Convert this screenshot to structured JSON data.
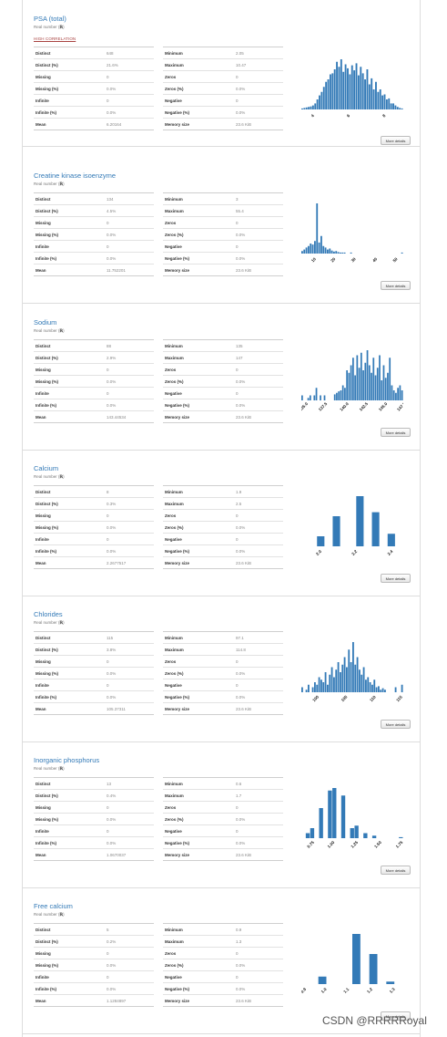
{
  "common": {
    "more_details": "More details",
    "bar_color": "#337ab7"
  },
  "variables": [
    {
      "title": "PSA (total)",
      "type_label": "Real number (",
      "type_code": "ℝ",
      "type_close": ")",
      "alert": "HIGH CORRELATION",
      "stats_left": [
        [
          "Distinct",
          "648"
        ],
        [
          "Distinct (%)",
          "21.6%"
        ],
        [
          "Missing",
          "0"
        ],
        [
          "Missing (%)",
          "0.0%"
        ],
        [
          "Infinite",
          "0"
        ],
        [
          "Infinite (%)",
          "0.0%"
        ],
        [
          "Mean",
          "6.20164"
        ]
      ],
      "stats_right": [
        [
          "Minimum",
          "2.05"
        ],
        [
          "Maximum",
          "10.47"
        ],
        [
          "Zeros",
          "0"
        ],
        [
          "Zeros (%)",
          "0.0%"
        ],
        [
          "Negative",
          "0"
        ],
        [
          "Negative (%)",
          "0.0%"
        ],
        [
          "Memory size",
          "23.6 KiB"
        ]
      ],
      "hist": {
        "bars": [
          0.02,
          0.03,
          0.04,
          0.05,
          0.06,
          0.08,
          0.12,
          0.2,
          0.28,
          0.35,
          0.45,
          0.55,
          0.6,
          0.7,
          0.72,
          0.8,
          0.95,
          0.85,
          1.0,
          0.75,
          0.9,
          0.82,
          0.7,
          0.88,
          0.78,
          0.92,
          0.68,
          0.85,
          0.72,
          0.6,
          0.8,
          0.5,
          0.62,
          0.4,
          0.55,
          0.35,
          0.4,
          0.28,
          0.3,
          0.2,
          0.22,
          0.12,
          0.12,
          0.08,
          0.05,
          0.03,
          0.02
        ],
        "ticks": [
          "4",
          "6",
          "8"
        ],
        "tick_pos": [
          0.12,
          0.47,
          0.82
        ]
      }
    },
    {
      "title": "Creatine kinase isoenzyme",
      "type_label": "Real number (",
      "type_code": "ℝ",
      "type_close": ")",
      "alert": "",
      "stats_left": [
        [
          "Distinct",
          "134"
        ],
        [
          "Distinct (%)",
          "4.5%"
        ],
        [
          "Missing",
          "0"
        ],
        [
          "Missing (%)",
          "0.0%"
        ],
        [
          "Infinite",
          "0"
        ],
        [
          "Infinite (%)",
          "0.0%"
        ],
        [
          "Mean",
          "11.752201"
        ]
      ],
      "stats_right": [
        [
          "Minimum",
          "3"
        ],
        [
          "Maximum",
          "55.4"
        ],
        [
          "Zeros",
          "0"
        ],
        [
          "Zeros (%)",
          "0.0%"
        ],
        [
          "Negative",
          "0"
        ],
        [
          "Negative (%)",
          "0.0%"
        ],
        [
          "Memory size",
          "23.6 KiB"
        ]
      ],
      "hist": {
        "bars": [
          0.05,
          0.08,
          0.12,
          0.15,
          0.2,
          0.18,
          0.25,
          1.0,
          0.22,
          0.35,
          0.15,
          0.12,
          0.08,
          0.1,
          0.06,
          0.04,
          0.05,
          0.03,
          0.02,
          0.02,
          0.02,
          0,
          0,
          0.02,
          0,
          0,
          0,
          0,
          0,
          0,
          0,
          0,
          0,
          0,
          0,
          0,
          0,
          0,
          0,
          0,
          0,
          0,
          0,
          0,
          0,
          0,
          0,
          0.02
        ],
        "ticks": [
          "10",
          "20",
          "30",
          "40",
          "50"
        ],
        "tick_pos": [
          0.13,
          0.32,
          0.52,
          0.73,
          0.93
        ]
      }
    },
    {
      "title": "Sodium",
      "type_label": "Real number (",
      "type_code": "ℝ",
      "type_close": ")",
      "alert": "",
      "stats_left": [
        [
          "Distinct",
          "88"
        ],
        [
          "Distinct (%)",
          "2.9%"
        ],
        [
          "Missing",
          "0"
        ],
        [
          "Missing (%)",
          "0.0%"
        ],
        [
          "Infinite",
          "0"
        ],
        [
          "Infinite (%)",
          "0.0%"
        ],
        [
          "Mean",
          "143.44534"
        ]
      ],
      "stats_right": [
        [
          "Minimum",
          "135"
        ],
        [
          "Maximum",
          "147"
        ],
        [
          "Zeros",
          "0"
        ],
        [
          "Zeros (%)",
          "0.0%"
        ],
        [
          "Negative",
          "0"
        ],
        [
          "Negative (%)",
          "0.0%"
        ],
        [
          "Memory size",
          "23.6 KiB"
        ]
      ],
      "hist": {
        "bars": [
          0.1,
          0,
          0,
          0.05,
          0.1,
          0,
          0.1,
          0.25,
          0,
          0.1,
          0,
          0.1,
          0,
          0,
          0,
          0,
          0.12,
          0.15,
          0.18,
          0.2,
          0.3,
          0.25,
          0.6,
          0.55,
          0.7,
          0.85,
          0.5,
          0.9,
          0.65,
          0.95,
          0.6,
          0.75,
          1.0,
          0.7,
          0.55,
          0.85,
          0.5,
          0.65,
          0.9,
          0.4,
          0.7,
          0.45,
          0.55,
          0.85,
          0.3,
          0.2,
          0.15,
          0.25,
          0.3,
          0.2
        ],
        "ticks": [
          "135.0",
          "137.5",
          "140.0",
          "142.5",
          "145.0",
          "147.5"
        ],
        "tick_pos": [
          0.03,
          0.22,
          0.43,
          0.62,
          0.81,
          0.99
        ]
      }
    },
    {
      "title": "Calcium",
      "type_label": "Real number (",
      "type_code": "ℝ",
      "type_close": ")",
      "alert": "",
      "stats_left": [
        [
          "Distinct",
          "8"
        ],
        [
          "Distinct (%)",
          "0.3%"
        ],
        [
          "Missing",
          "0"
        ],
        [
          "Missing (%)",
          "0.0%"
        ],
        [
          "Infinite",
          "0"
        ],
        [
          "Infinite (%)",
          "0.0%"
        ],
        [
          "Mean",
          "2.2677517"
        ]
      ],
      "stats_right": [
        [
          "Minimum",
          "1.9"
        ],
        [
          "Maximum",
          "2.5"
        ],
        [
          "Zeros",
          "0"
        ],
        [
          "Zeros (%)",
          "0.0%"
        ],
        [
          "Negative",
          "0"
        ],
        [
          "Negative (%)",
          "0.0%"
        ],
        [
          "Memory size",
          "23.6 KiB"
        ]
      ],
      "hist": {
        "bars": [
          0,
          0,
          0.2,
          0,
          0.6,
          0,
          0,
          1.0,
          0,
          0.68,
          0,
          0.25,
          0
        ],
        "ticks": [
          "2.0",
          "2.2",
          "2.4"
        ],
        "tick_pos": [
          0.18,
          0.53,
          0.88
        ]
      }
    },
    {
      "title": "Chlorides",
      "type_label": "Real number (",
      "type_code": "ℝ",
      "type_close": ")",
      "alert": "",
      "stats_left": [
        [
          "Distinct",
          "115"
        ],
        [
          "Distinct (%)",
          "3.8%"
        ],
        [
          "Missing",
          "0"
        ],
        [
          "Missing (%)",
          "0.0%"
        ],
        [
          "Infinite",
          "0"
        ],
        [
          "Infinite (%)",
          "0.0%"
        ],
        [
          "Mean",
          "105.37311"
        ]
      ],
      "stats_right": [
        [
          "Minimum",
          "97.1"
        ],
        [
          "Maximum",
          "114.8"
        ],
        [
          "Zeros",
          "0"
        ],
        [
          "Zeros (%)",
          "0.0%"
        ],
        [
          "Negative",
          "0"
        ],
        [
          "Negative (%)",
          "0.0%"
        ],
        [
          "Memory size",
          "23.6 KiB"
        ]
      ],
      "hist": {
        "bars": [
          0.1,
          0,
          0.05,
          0.15,
          0,
          0.1,
          0.2,
          0.15,
          0.3,
          0.25,
          0.2,
          0.4,
          0.15,
          0.35,
          0.5,
          0.3,
          0.45,
          0.6,
          0.4,
          0.55,
          0.7,
          0.5,
          0.85,
          0.6,
          1.0,
          0.55,
          0.7,
          0.45,
          0.35,
          0.5,
          0.25,
          0.3,
          0.2,
          0.15,
          0.25,
          0.1,
          0.12,
          0.05,
          0.08,
          0.05,
          0,
          0,
          0,
          0,
          0.1,
          0,
          0,
          0.15
        ],
        "ticks": [
          "100",
          "105",
          "110",
          "115"
        ],
        "tick_pos": [
          0.15,
          0.43,
          0.71,
          0.97
        ]
      }
    },
    {
      "title": "Inorganic phosphorus",
      "type_label": "Real number (",
      "type_code": "ℝ",
      "type_close": ")",
      "alert": "",
      "stats_left": [
        [
          "Distinct",
          "13"
        ],
        [
          "Distinct (%)",
          "0.4%"
        ],
        [
          "Missing",
          "0"
        ],
        [
          "Missing (%)",
          "0.0%"
        ],
        [
          "Infinite",
          "0"
        ],
        [
          "Infinite (%)",
          "0.0%"
        ],
        [
          "Mean",
          "1.0670037"
        ]
      ],
      "stats_right": [
        [
          "Minimum",
          "0.6"
        ],
        [
          "Maximum",
          "1.7"
        ],
        [
          "Zeros",
          "0"
        ],
        [
          "Zeros (%)",
          "0.0%"
        ],
        [
          "Negative",
          "0"
        ],
        [
          "Negative (%)",
          "0.0%"
        ],
        [
          "Memory size",
          "23.6 KiB"
        ]
      ],
      "hist": {
        "bars": [
          0,
          0.1,
          0.2,
          0,
          0.6,
          0,
          0.95,
          1.0,
          0,
          0.85,
          0,
          0.2,
          0.25,
          0,
          0.1,
          0,
          0.05,
          0,
          0,
          0,
          0,
          0,
          0.02
        ],
        "ticks": [
          "0.75",
          "1.00",
          "1.25",
          "1.50",
          "1.75"
        ],
        "tick_pos": [
          0.1,
          0.3,
          0.53,
          0.76,
          0.97
        ]
      }
    },
    {
      "title": "Free calcium",
      "type_label": "Real number (",
      "type_code": "ℝ",
      "type_close": ")",
      "alert": "",
      "stats_left": [
        [
          "Distinct",
          "5"
        ],
        [
          "Distinct (%)",
          "0.2%"
        ],
        [
          "Missing",
          "0"
        ],
        [
          "Missing (%)",
          "0.0%"
        ],
        [
          "Infinite",
          "0"
        ],
        [
          "Infinite (%)",
          "0.0%"
        ],
        [
          "Mean",
          "1.1284897"
        ]
      ],
      "stats_right": [
        [
          "Minimum",
          "0.9"
        ],
        [
          "Maximum",
          "1.3"
        ],
        [
          "Zeros",
          "0"
        ],
        [
          "Zeros (%)",
          "0.0%"
        ],
        [
          "Negative",
          "0"
        ],
        [
          "Negative (%)",
          "0.0%"
        ],
        [
          "Memory size",
          "23.6 KiB"
        ]
      ],
      "hist": {
        "bars": [
          0,
          0,
          0.15,
          0,
          0,
          0,
          1.0,
          0,
          0.6,
          0,
          0.05,
          0
        ],
        "ticks": [
          "0.9",
          "1.0",
          "1.1",
          "1.2",
          "1.3"
        ],
        "tick_pos": [
          0.03,
          0.23,
          0.45,
          0.68,
          0.9
        ]
      }
    }
  ],
  "watermark": "CSDN @RRRRRoyal"
}
